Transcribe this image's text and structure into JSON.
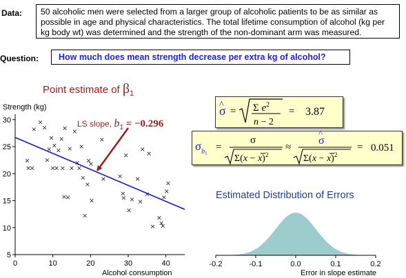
{
  "header": {
    "data_label": "Data:",
    "data_text": "50 alcoholic men were selected from a larger group of alcoholic patients to be as similar as possible in age and physical characteristics. The total lifetime consumption of alcohol (kg per kg body wt) was determined and the strength of the non-dominant arm was measured.",
    "question_label": "Question:",
    "question_text": "How  much does mean strength decrease per extra kg of alcohol?"
  },
  "scatter": {
    "title_prefix": "Point estimate of ",
    "title_symbol": "β",
    "title_sub": "1",
    "annotation_prefix": "LS slope, ",
    "annotation_symbol": "b",
    "annotation_sub": "1",
    "annotation_value": " = −0.296"
  },
  "formulas": {
    "sigma_hat_result": "3.87",
    "se_result": "0.051"
  },
  "distribution": {
    "title": "Estimated Distribution of Errors"
  },
  "colors": {
    "title_red": "#9b1c1c",
    "line_blue": "#1818cc",
    "question_blue": "#1f1fdd",
    "bell_fill": "#9ccccc",
    "box_fill": "#ffffcc"
  },
  "chart_data": [
    {
      "type": "scatter",
      "title": "Point estimate of β1",
      "ylabel": "Strength (kg)",
      "xlabel": "Alcohol consumption",
      "xlim": [
        0,
        45
      ],
      "ylim": [
        5,
        31
      ],
      "x_ticks": [
        0,
        10,
        20,
        30,
        40
      ],
      "y_ticks": [
        5,
        10,
        15,
        20,
        25,
        30
      ],
      "points": [
        [
          3.2,
          22.4
        ],
        [
          3.5,
          21.0
        ],
        [
          4.5,
          21.0
        ],
        [
          5.0,
          28.2
        ],
        [
          6.7,
          29.5
        ],
        [
          7.8,
          28.5
        ],
        [
          8.5,
          22.5
        ],
        [
          9.0,
          24.5
        ],
        [
          9.6,
          26.6
        ],
        [
          10.0,
          21.0
        ],
        [
          10.4,
          25.2
        ],
        [
          11.0,
          21.0
        ],
        [
          11.5,
          24.3
        ],
        [
          12.3,
          26.4
        ],
        [
          12.6,
          21.0
        ],
        [
          13.0,
          15.7
        ],
        [
          13.2,
          28.4
        ],
        [
          14.0,
          15.6
        ],
        [
          14.5,
          24.6
        ],
        [
          15.0,
          21.0
        ],
        [
          15.8,
          27.8
        ],
        [
          16.5,
          22.0
        ],
        [
          17.0,
          21.0
        ],
        [
          17.6,
          25.0
        ],
        [
          18.0,
          19.2
        ],
        [
          18.5,
          12.2
        ],
        [
          19.2,
          18.0
        ],
        [
          19.5,
          22.4
        ],
        [
          20.1,
          21.8
        ],
        [
          20.3,
          15.0
        ],
        [
          23.0,
          26.3
        ],
        [
          23.4,
          19.0
        ],
        [
          27.8,
          19.5
        ],
        [
          28.6,
          16.3
        ],
        [
          28.8,
          15.5
        ],
        [
          29.4,
          23.4
        ],
        [
          30.2,
          13.2
        ],
        [
          31.0,
          15.2
        ],
        [
          32.5,
          19.0
        ],
        [
          33.2,
          14.8
        ],
        [
          33.8,
          24.5
        ],
        [
          35.0,
          16.2
        ],
        [
          35.5,
          23.7
        ],
        [
          36.5,
          10.2
        ],
        [
          38.2,
          11.8
        ],
        [
          38.8,
          10.8
        ],
        [
          39.2,
          10.3
        ],
        [
          39.5,
          15.6
        ],
        [
          40.2,
          16.7
        ],
        [
          40.6,
          18.2
        ]
      ],
      "ls_line": {
        "intercept": 26.7,
        "slope": -0.296
      },
      "annotation": "LS slope, b1 = −0.296"
    },
    {
      "type": "area",
      "title": "Estimated Distribution of Errors",
      "xlabel": "Error in slope estimate",
      "xlim": [
        -0.2,
        0.2
      ],
      "x_ticks": [
        -0.2,
        -0.1,
        0.0,
        0.1,
        0.2
      ],
      "x_tick_labels": [
        "-0.2",
        "-0.1",
        "0.0",
        "0.1",
        "0.2"
      ],
      "distribution": {
        "kind": "normal",
        "mean": 0,
        "sd": 0.051
      }
    }
  ]
}
